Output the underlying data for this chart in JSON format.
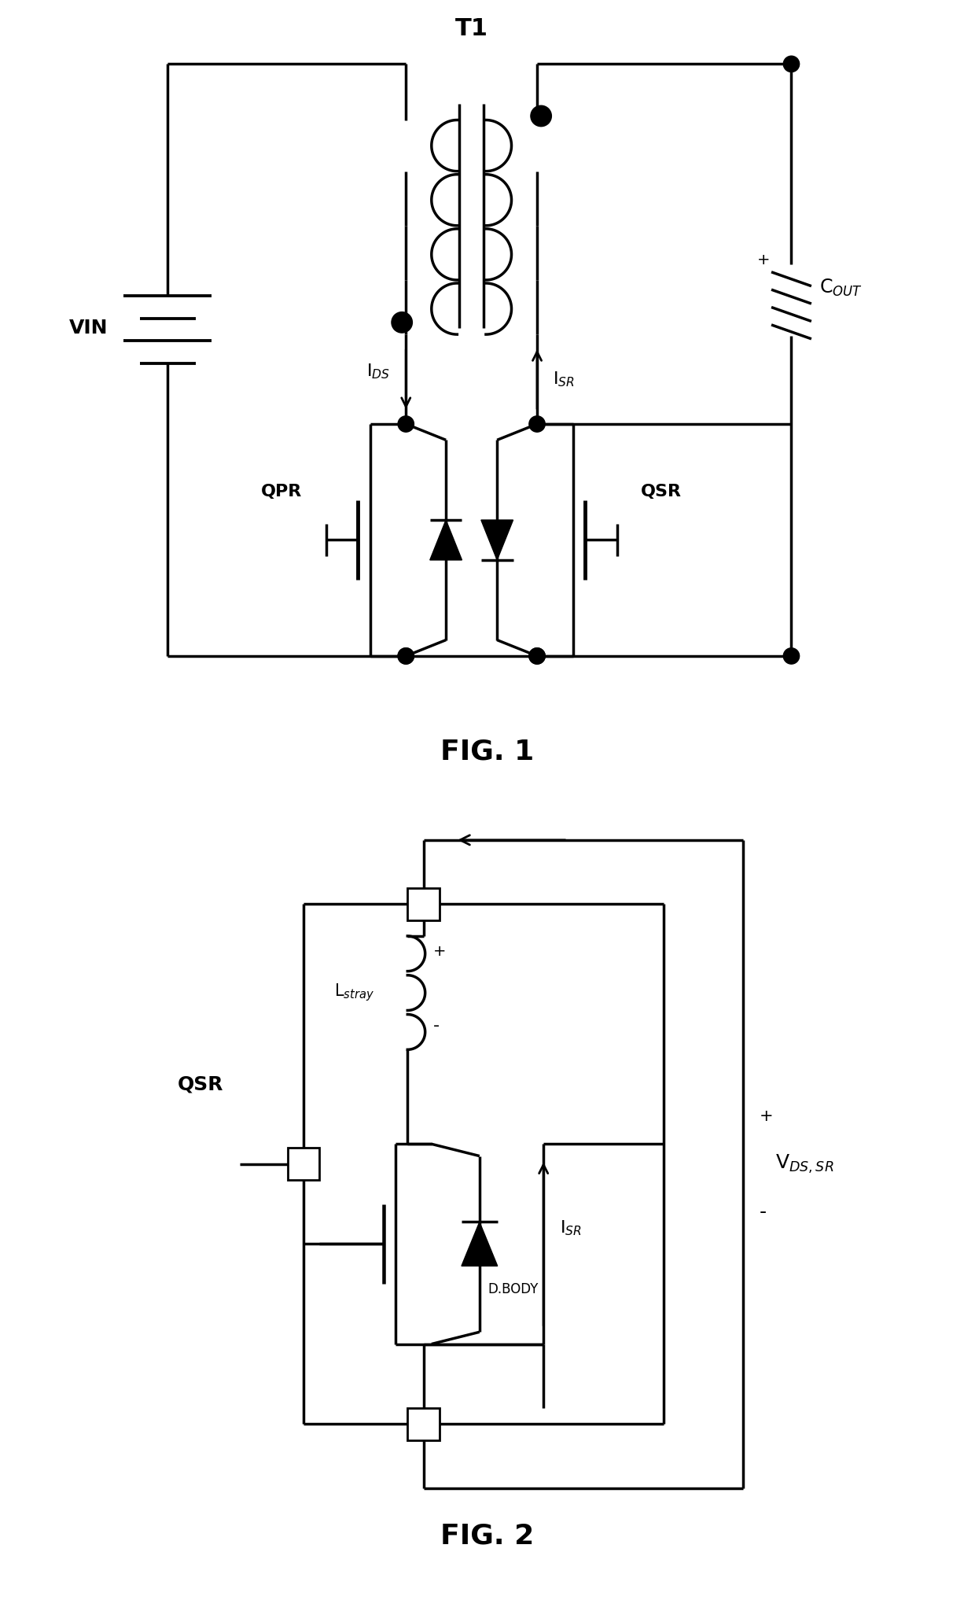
{
  "background_color": "#ffffff",
  "line_color": "#000000",
  "lw": 2.5,
  "fig1_label": "FIG. 1",
  "fig2_label": "FIG. 2",
  "T1_label": "T1",
  "VIN_label": "VIN",
  "QPR_label": "QPR",
  "QSR_label": "QSR",
  "IDS_label": "I$_{DS}$",
  "ISR_label": "I$_{SR}$",
  "COUT_label": "C$_{OUT}$",
  "QSR2_label": "QSR",
  "Lstray_label": "L$_{stray}$",
  "ISR2_label": "I$_{SR}$",
  "DBODY_label": "D.BODY",
  "VDS_label": "V$_{DS,SR}$"
}
